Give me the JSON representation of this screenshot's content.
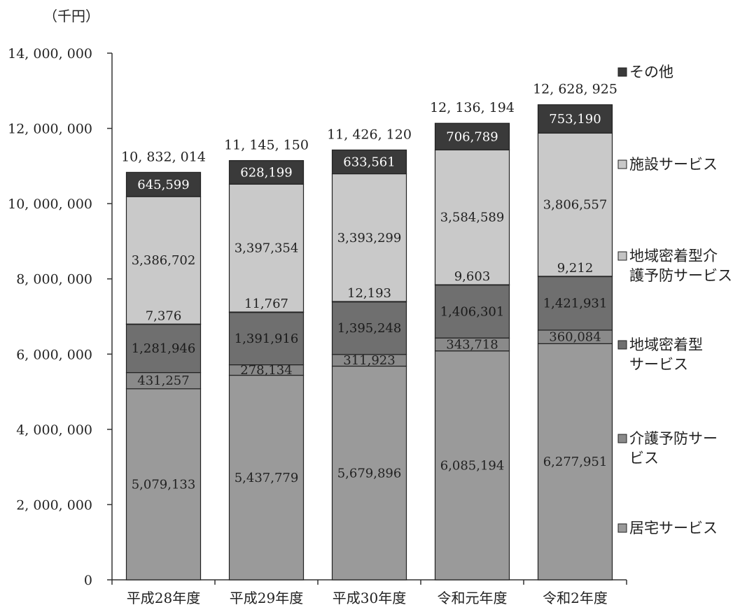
{
  "chart_data": {
    "type": "bar",
    "stacked": true,
    "unit_label": "（千円）",
    "categories": [
      "平成28年度",
      "平成29年度",
      "平成30年度",
      "令和元年度",
      "令和2年度"
    ],
    "ylim": [
      0,
      14000000
    ],
    "yticks": [
      0,
      2000000,
      4000000,
      6000000,
      8000000,
      10000000,
      12000000,
      14000000
    ],
    "ytick_labels": [
      "0",
      "2, 000, 000",
      "4, 000, 000",
      "6, 000, 000",
      "8, 000, 000",
      "10, 000, 000",
      "12, 000, 000",
      "14, 000, 000"
    ],
    "totals": [
      10832014,
      11145150,
      11426120,
      12136194,
      12628925
    ],
    "total_labels": [
      "10, 832, 014",
      "11, 145, 150",
      "11, 426, 120",
      "12, 136, 194",
      "12, 628, 925"
    ],
    "series": [
      {
        "name": "居宅サービス",
        "legend": [
          "居宅サービス"
        ],
        "color": "#9a9a9a",
        "label_color": "#222222",
        "values": [
          5079133,
          5437779,
          5679896,
          6085194,
          6277951
        ],
        "labels": [
          "5,079,133",
          "5,437,779",
          "5,679,896",
          "6,085,194",
          "6,277,951"
        ]
      },
      {
        "name": "介護予防サービス",
        "legend": [
          "介護予防サー",
          "ビス"
        ],
        "color": "#8a8a8a",
        "label_color": "#222222",
        "values": [
          431257,
          278134,
          311923,
          343718,
          360084
        ],
        "labels": [
          "431,257",
          "278,134",
          "311,923",
          "343,718",
          "360,084"
        ]
      },
      {
        "name": "地域密着型サービス",
        "legend": [
          "地域密着型",
          "サービス"
        ],
        "color": "#6f6f6f",
        "label_color": "#1a1a1a",
        "values": [
          1281946,
          1391916,
          1395248,
          1406301,
          1421931
        ],
        "labels": [
          "1,281,946",
          "1,391,916",
          "1,395,248",
          "1,406,301",
          "1,421,931"
        ]
      },
      {
        "name": "地域密着型介護予防サービス",
        "legend": [
          "地域密着型介",
          "護予防サービス"
        ],
        "color": "#c4c4c4",
        "label_color": "#222222",
        "values": [
          7376,
          11767,
          12193,
          9603,
          9212
        ],
        "labels": [
          "7,376",
          "11,767",
          "12,193",
          "9,603",
          "9,212"
        ]
      },
      {
        "name": "施設サービス",
        "legend": [
          "施設サービス"
        ],
        "color": "#c9c9c9",
        "label_color": "#222222",
        "values": [
          3386702,
          3397354,
          3393299,
          3584589,
          3806557
        ],
        "labels": [
          "3,386,702",
          "3,397,354",
          "3,393,299",
          "3,584,589",
          "3,806,557"
        ]
      },
      {
        "name": "その他",
        "legend": [
          "その他"
        ],
        "color": "#3a3a3a",
        "label_color": "#ffffff",
        "values": [
          645599,
          628199,
          633561,
          706789,
          753190
        ],
        "labels": [
          "645,599",
          "628,199",
          "633,561",
          "706,789",
          "753,190"
        ]
      }
    ]
  }
}
